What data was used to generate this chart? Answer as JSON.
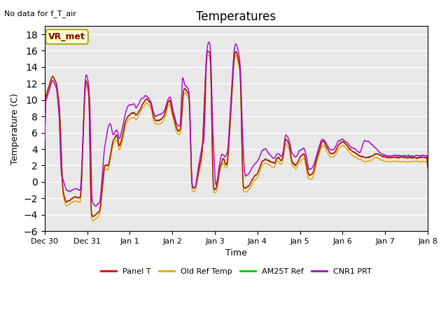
{
  "title": "Temperatures",
  "xlabel": "Time",
  "ylabel": "Temperature (C)",
  "note": "No data for f_T_air",
  "legend_label": "VR_met",
  "ylim": [
    -6,
    19
  ],
  "yticks": [
    -6,
    -4,
    -2,
    0,
    2,
    4,
    6,
    8,
    10,
    12,
    14,
    16,
    18
  ],
  "xtick_labels": [
    "Dec 30",
    "Dec 31",
    "Jan 1",
    "Jan 2",
    "Jan 3",
    "Jan 4",
    "Jan 5",
    "Jan 6",
    "Jan 7",
    "Jan 8"
  ],
  "series_colors": {
    "Panel T": "#dd0000",
    "Old Ref Temp": "#ddaa00",
    "AM25T Ref": "#00cc00",
    "CNR1 PRT": "#aa00cc"
  },
  "bg_color": "#e8e8e8",
  "line_width": 1.0,
  "figsize": [
    6.4,
    4.8
  ],
  "dpi": 100
}
